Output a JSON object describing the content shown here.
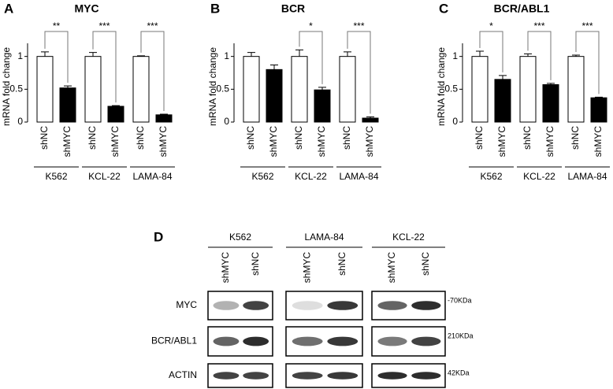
{
  "chart_data": [
    {
      "type": "bar",
      "panel": "A",
      "title": "MYC",
      "ylabel": "mRNA fold change",
      "categories": [
        "shNC",
        "shMYC",
        "shNC",
        "shMYC",
        "shNC",
        "shMYC"
      ],
      "groups": [
        "K562",
        "KCL-22",
        "LAMA-84"
      ],
      "values": [
        1,
        0.52,
        1,
        0.24,
        1,
        0.11
      ],
      "errors": [
        0.07,
        0.03,
        0.06,
        0.01,
        0.01,
        0.01
      ],
      "colors": [
        "#ffffff",
        "#000000",
        "#ffffff",
        "#000000",
        "#ffffff",
        "#000000"
      ],
      "significance": [
        "**",
        "***",
        "***"
      ],
      "ylim": [
        0,
        1.2
      ],
      "yticks": [
        0,
        0.5,
        1
      ]
    },
    {
      "type": "bar",
      "panel": "B",
      "title": "BCR",
      "ylabel": "mRNA fold change",
      "categories": [
        "shNC",
        "shMYC",
        "shNC",
        "shMYC",
        "shNC",
        "shMYC"
      ],
      "groups": [
        "K562",
        "KCL-22",
        "LAMA-84"
      ],
      "values": [
        1,
        0.8,
        1,
        0.49,
        1,
        0.06
      ],
      "errors": [
        0.06,
        0.07,
        0.1,
        0.04,
        0.07,
        0.02
      ],
      "colors": [
        "#ffffff",
        "#000000",
        "#ffffff",
        "#000000",
        "#ffffff",
        "#000000"
      ],
      "significance": [
        null,
        "*",
        "***"
      ],
      "ylim": [
        0,
        1.2
      ],
      "yticks": [
        0,
        0.5,
        1
      ]
    },
    {
      "type": "bar",
      "panel": "C",
      "title": "BCR/ABL1",
      "ylabel": "mRNA fold change",
      "categories": [
        "shNC",
        "shMYC",
        "shNC",
        "shMYC",
        "shNC",
        "shMYC"
      ],
      "groups": [
        "K562",
        "KCL-22",
        "LAMA-84"
      ],
      "values": [
        1,
        0.65,
        1,
        0.57,
        1,
        0.37
      ],
      "errors": [
        0.08,
        0.06,
        0.04,
        0.02,
        0.02,
        0.01
      ],
      "colors": [
        "#ffffff",
        "#000000",
        "#ffffff",
        "#000000",
        "#ffffff",
        "#000000"
      ],
      "significance": [
        "*",
        "***",
        "***"
      ],
      "ylim": [
        0,
        1.2
      ],
      "yticks": [
        0,
        0.5,
        1
      ]
    }
  ],
  "blot": {
    "panel": "D",
    "groups": [
      {
        "name": "K562",
        "lanes": [
          "shMYC",
          "shNC"
        ]
      },
      {
        "name": "LAMA-84",
        "lanes": [
          "shMYC",
          "shNC"
        ]
      },
      {
        "name": "KCL-22",
        "lanes": [
          "shMYC",
          "shNC"
        ]
      }
    ],
    "rows": [
      {
        "label": "MYC",
        "size": "-70KDa"
      },
      {
        "label": "BCR/ABL1",
        "size": "210KDa"
      },
      {
        "label": "ACTIN",
        "size": "42KDa"
      }
    ]
  }
}
